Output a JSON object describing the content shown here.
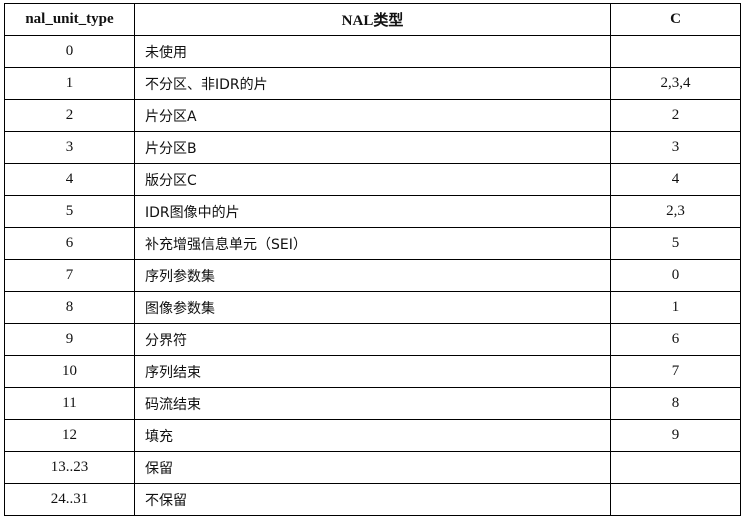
{
  "headers": [
    "nal_unit_type",
    "NAL类型",
    "C"
  ],
  "rows": [
    [
      "0",
      "未使用",
      ""
    ],
    [
      "1",
      "不分区、非IDR的片",
      "2,3,4"
    ],
    [
      "2",
      "片分区A",
      "2"
    ],
    [
      "3",
      "片分区B",
      "3"
    ],
    [
      "4",
      "版分区C",
      "4"
    ],
    [
      "5",
      "IDR图像中的片",
      "2,3"
    ],
    [
      "6",
      "补充增强信息单元（SEI）",
      "5"
    ],
    [
      "7",
      "序列参数集",
      "0"
    ],
    [
      "8",
      "图像参数集",
      "1"
    ],
    [
      "9",
      "分界符",
      "6"
    ],
    [
      "10",
      "序列结束",
      "7"
    ],
    [
      "11",
      "码流结束",
      "8"
    ],
    [
      "12",
      "填充",
      "9"
    ],
    [
      "13..23",
      "保留",
      ""
    ],
    [
      "24..31",
      "不保留",
      ""
    ]
  ]
}
